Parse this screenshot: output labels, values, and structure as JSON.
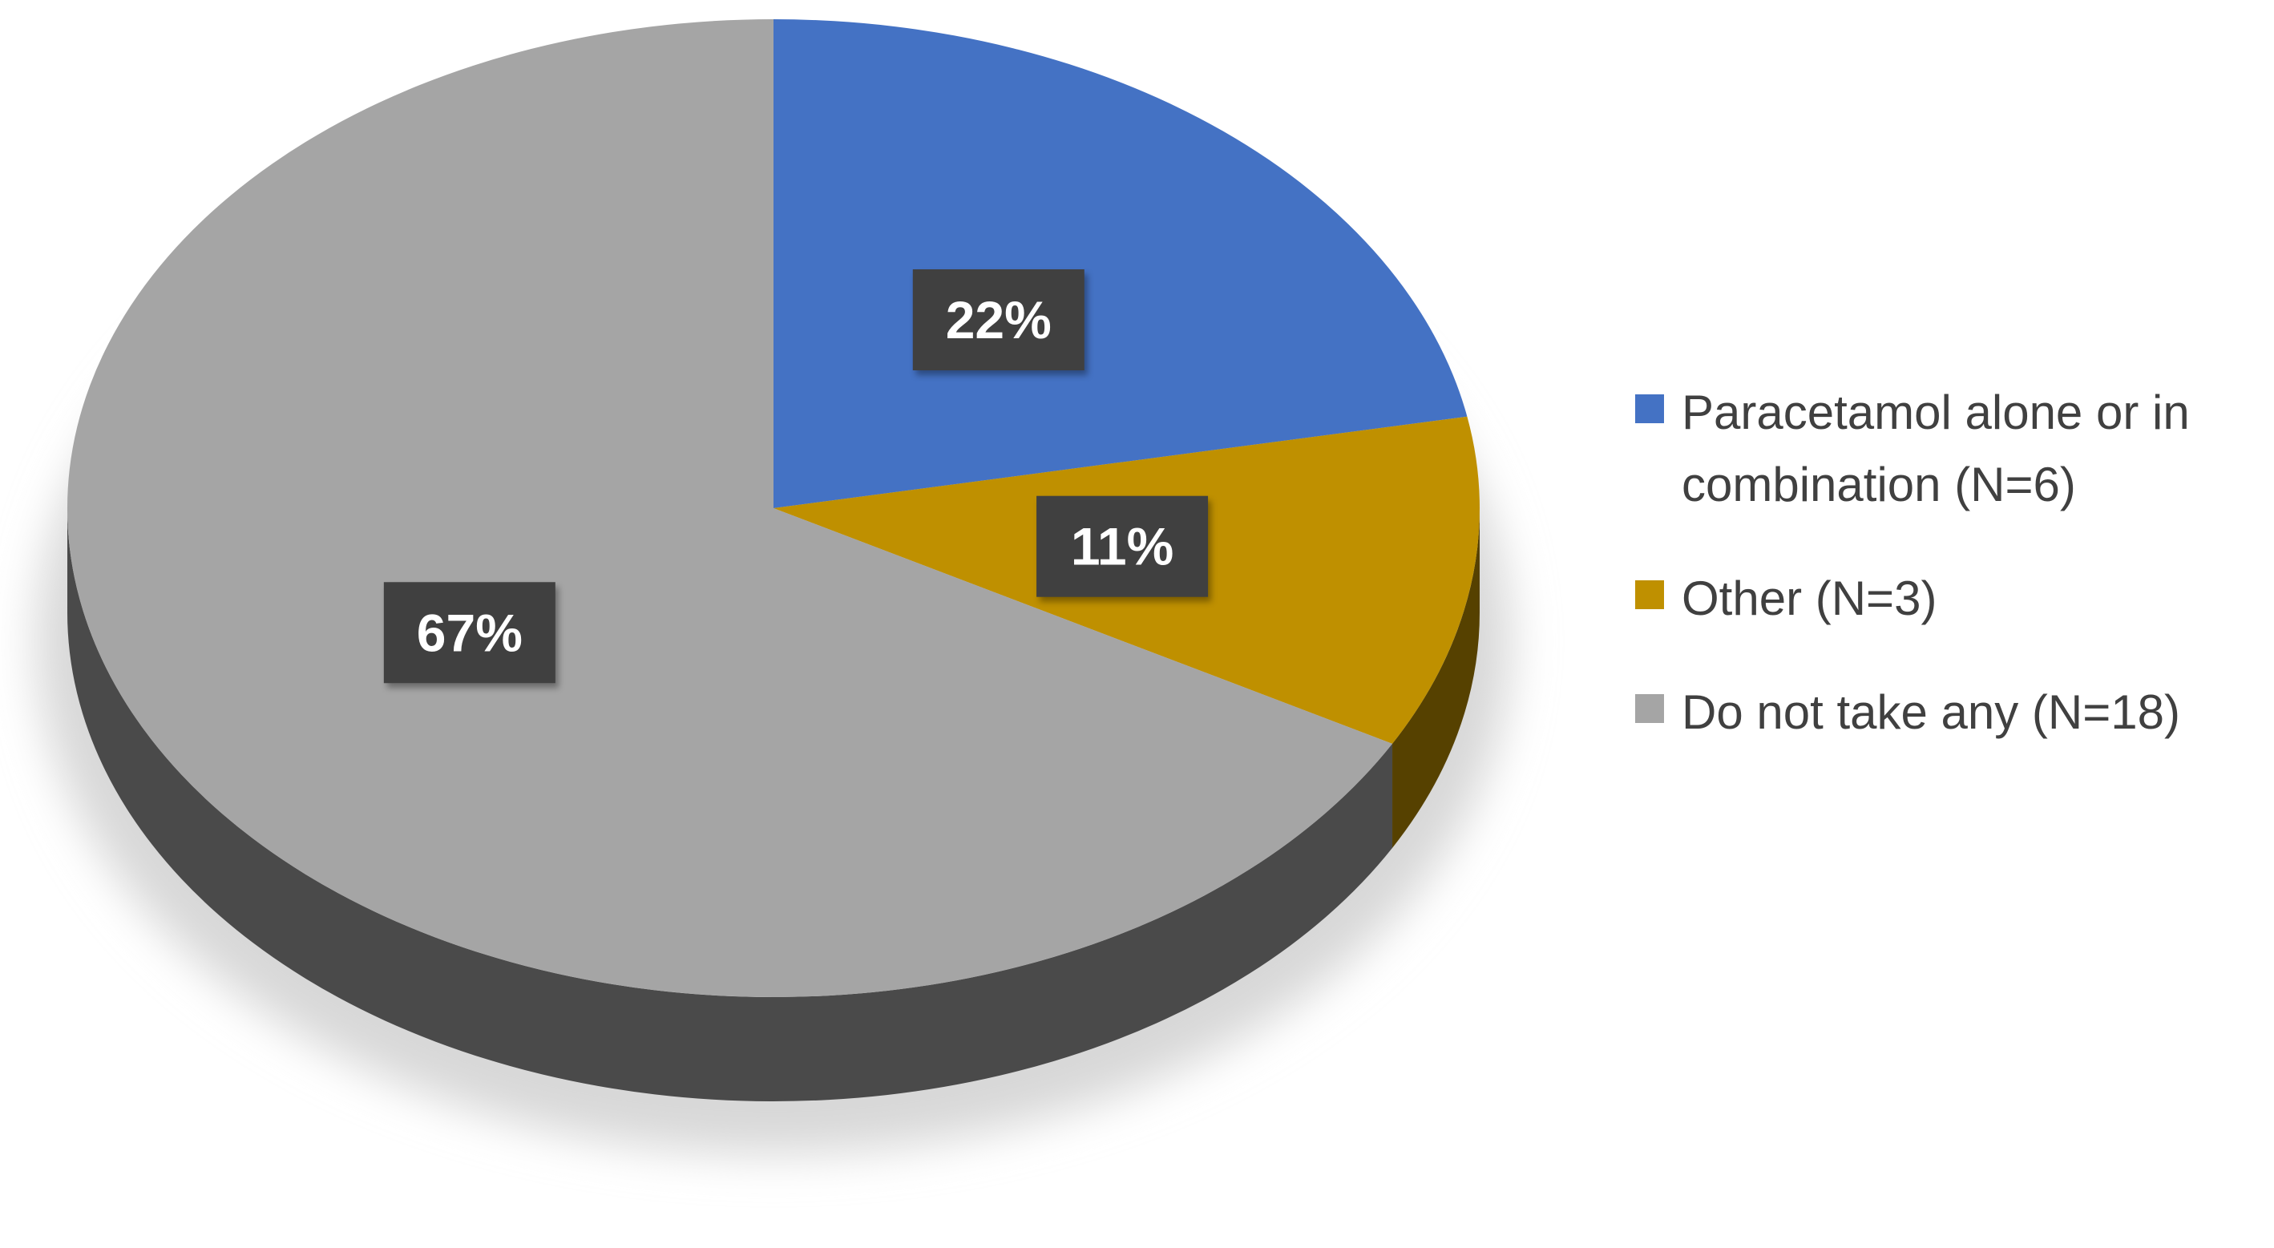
{
  "chart_data": {
    "type": "pie",
    "categories": [
      "Paracetamol alone or in combination (N=6)",
      "Other (N=3)",
      "Do not take any (N=18)"
    ],
    "values": [
      22,
      11,
      67
    ],
    "value_labels": [
      "22%",
      "11%",
      "67%"
    ],
    "colors": [
      "#4472c4",
      "#bf9000",
      "#a5a5a5"
    ],
    "legend": "right"
  }
}
